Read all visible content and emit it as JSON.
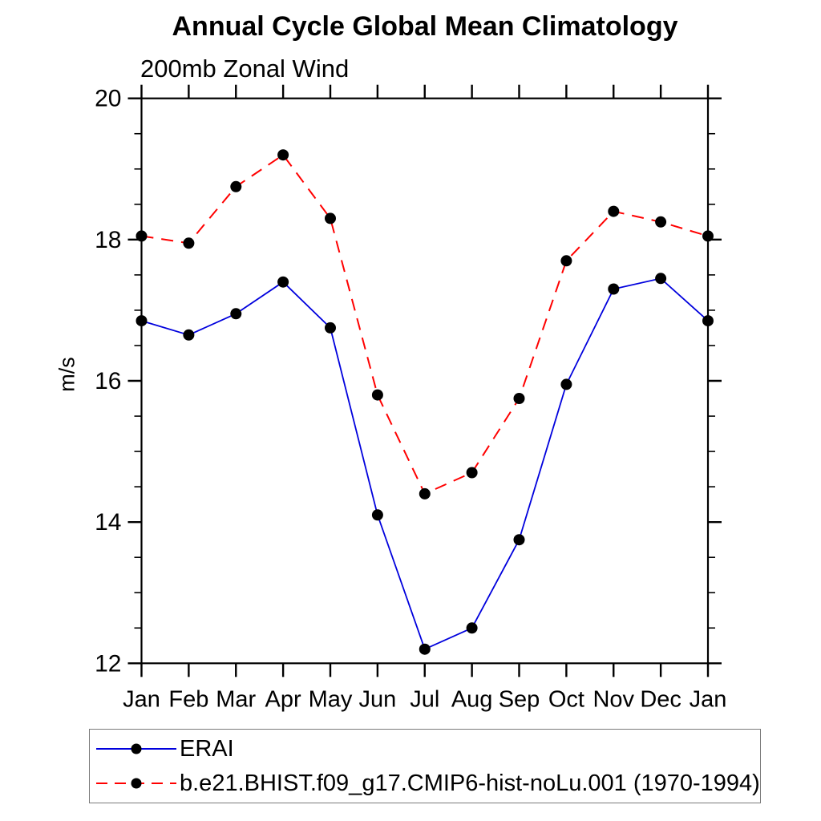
{
  "header": {
    "title": "Annual Cycle Global Mean Climatology",
    "subtitle": "200mb Zonal Wind"
  },
  "chart_data": {
    "type": "line",
    "title": "Annual Cycle Global Mean Climatology",
    "subtitle": "200mb Zonal Wind",
    "xlabel": "",
    "ylabel": "m/s",
    "categories": [
      "Jan",
      "Feb",
      "Mar",
      "Apr",
      "May",
      "Jun",
      "Jul",
      "Aug",
      "Sep",
      "Oct",
      "Nov",
      "Dec",
      "Jan"
    ],
    "ylim": [
      12,
      20
    ],
    "ytick_major": [
      12,
      14,
      16,
      18,
      20
    ],
    "ytick_minor_step": 0.5,
    "grid": false,
    "legend_position": "bottom",
    "series": [
      {
        "name": "ERAI",
        "color": "#0000dd",
        "line_style": "solid",
        "marker": "filled-circle",
        "marker_color": "#000000",
        "values": [
          16.85,
          16.65,
          16.95,
          17.4,
          16.75,
          14.1,
          12.2,
          12.5,
          13.75,
          15.95,
          17.3,
          17.45,
          16.85
        ]
      },
      {
        "name": "b.e21.BHIST.f09_g17.CMIP6-hist-noLu.001 (1970-1994)",
        "color": "#ff0000",
        "line_style": "dashed",
        "marker": "filled-circle",
        "marker_color": "#000000",
        "values": [
          18.05,
          17.95,
          18.75,
          19.2,
          18.3,
          15.8,
          14.4,
          14.7,
          15.75,
          17.7,
          18.4,
          18.25,
          18.05
        ]
      }
    ]
  },
  "colors": {
    "axis": "#000000",
    "tick_label": "#000000",
    "legend_border": "#7a7a7a"
  }
}
